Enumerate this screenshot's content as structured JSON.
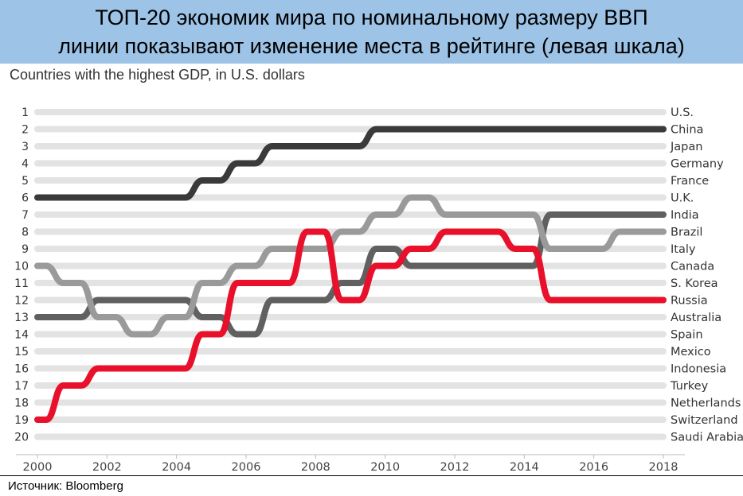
{
  "header": {
    "line1": "ТОП-20 экономик мира по номинальному размеру ВВП",
    "line2": "линии показывают изменение места в рейтинге (левая шкала)"
  },
  "source": "Источник: Bloomberg",
  "colors": {
    "banner": "#9dc3e6",
    "background_track": "#e3e3e3",
    "china": "#3a3a3a",
    "india": "#606060",
    "brazil": "#9a9a9a",
    "russia": "#e8102a"
  },
  "chart_data": {
    "type": "line",
    "title": "Countries with the highest GDP, in U.S. dollars",
    "x_ticks": [
      2000,
      2002,
      2004,
      2006,
      2008,
      2010,
      2012,
      2014,
      2016,
      2018
    ],
    "xlim": [
      2000,
      2018
    ],
    "y_ticks": [
      1,
      2,
      3,
      4,
      5,
      6,
      7,
      8,
      9,
      10,
      11,
      12,
      13,
      14,
      15,
      16,
      17,
      18,
      19,
      20
    ],
    "ylim": [
      1,
      20
    ],
    "y_inverted": true,
    "right_labels": [
      "U.S.",
      "China",
      "Japan",
      "Germany",
      "France",
      "U.K.",
      "India",
      "Brazil",
      "Italy",
      "Canada",
      "S. Korea",
      "Russia",
      "Australia",
      "Spain",
      "Mexico",
      "Indonesia",
      "Turkey",
      "Netherlands",
      "Switzerland",
      "Saudi Arabia"
    ],
    "highlighted_series": [
      {
        "name": "China",
        "color": "#3a3a3a",
        "x": [
          2000,
          2001,
          2002,
          2003,
          2004,
          2005,
          2006,
          2007,
          2008,
          2009,
          2010,
          2011,
          2012,
          2013,
          2014,
          2015,
          2016,
          2017,
          2018
        ],
        "y": [
          6,
          6,
          6,
          6,
          6,
          5,
          4,
          3,
          3,
          3,
          2,
          2,
          2,
          2,
          2,
          2,
          2,
          2,
          2
        ]
      },
      {
        "name": "India",
        "color": "#606060",
        "x": [
          2000,
          2001,
          2002,
          2003,
          2004,
          2005,
          2006,
          2007,
          2008,
          2009,
          2010,
          2011,
          2012,
          2013,
          2014,
          2015,
          2016,
          2017,
          2018
        ],
        "y": [
          13,
          13,
          12,
          12,
          12,
          13,
          14,
          12,
          12,
          11,
          9,
          10,
          10,
          10,
          10,
          7,
          7,
          7,
          7
        ]
      },
      {
        "name": "Brazil",
        "color": "#9a9a9a",
        "x": [
          2000,
          2001,
          2002,
          2003,
          2004,
          2005,
          2006,
          2007,
          2008,
          2009,
          2010,
          2011,
          2012,
          2013,
          2014,
          2015,
          2016,
          2017,
          2018
        ],
        "y": [
          10,
          11,
          13,
          14,
          13,
          11,
          10,
          9,
          9,
          8,
          7,
          6,
          7,
          7,
          7,
          9,
          9,
          8,
          8
        ]
      },
      {
        "name": "Russia",
        "color": "#e8102a",
        "x": [
          2000,
          2001,
          2002,
          2003,
          2004,
          2005,
          2006,
          2007,
          2008,
          2009,
          2010,
          2011,
          2012,
          2013,
          2014,
          2015,
          2016,
          2017,
          2018
        ],
        "y": [
          19,
          17,
          16,
          16,
          16,
          14,
          11,
          11,
          8,
          12,
          10,
          9,
          8,
          8,
          9,
          12,
          12,
          12,
          12
        ]
      }
    ],
    "grid": true
  }
}
